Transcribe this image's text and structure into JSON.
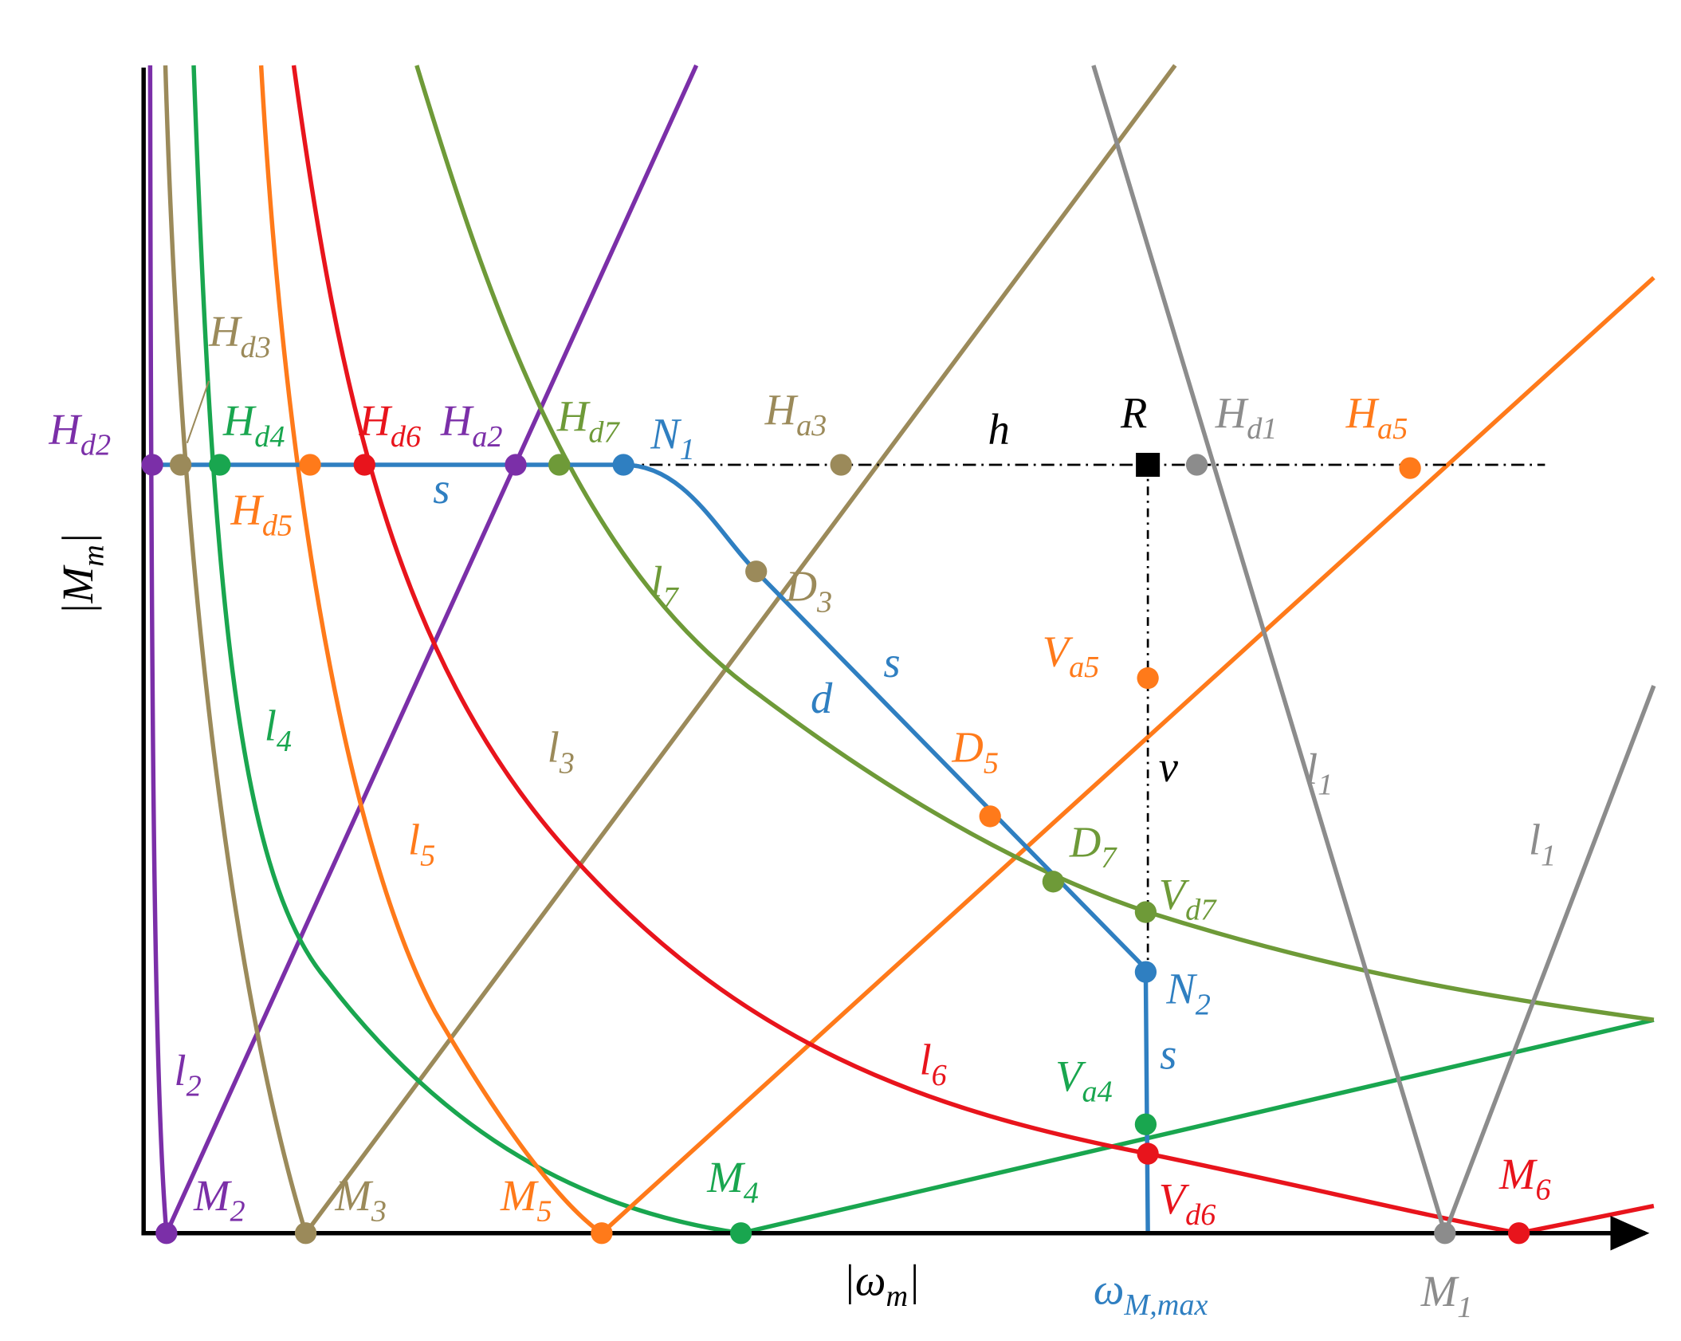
{
  "labels": {
    "Hd2": {
      "main": "H",
      "sub": "d2"
    },
    "Hd3": {
      "main": "H",
      "sub": "d3"
    },
    "Hd4": {
      "main": "H",
      "sub": "d4"
    },
    "Hd5": {
      "main": "H",
      "sub": "d5"
    },
    "Hd6": {
      "main": "H",
      "sub": "d6"
    },
    "Ha2": {
      "main": "H",
      "sub": "a2"
    },
    "Hd7": {
      "main": "H",
      "sub": "d7"
    },
    "N1": {
      "main": "N",
      "sub": "1"
    },
    "Ha3": {
      "main": "H",
      "sub": "a3"
    },
    "h": {
      "main": "h"
    },
    "R": {
      "main": "R"
    },
    "Hd1": {
      "main": "H",
      "sub": "d1"
    },
    "Ha5": {
      "main": "H",
      "sub": "a5"
    },
    "s1": {
      "main": "s"
    },
    "l7": {
      "main": "l",
      "sub": "7"
    },
    "D3": {
      "main": "D",
      "sub": "3"
    },
    "s2": {
      "main": "s"
    },
    "d": {
      "main": "d"
    },
    "Va5": {
      "main": "V",
      "sub": "a5"
    },
    "l4": {
      "main": "l",
      "sub": "4"
    },
    "l3": {
      "main": "l",
      "sub": "3"
    },
    "D5": {
      "main": "D",
      "sub": "5"
    },
    "v": {
      "main": "v"
    },
    "l1a": {
      "main": "l",
      "sub": "1"
    },
    "l5": {
      "main": "l",
      "sub": "5"
    },
    "D7": {
      "main": "D",
      "sub": "7"
    },
    "Vd7": {
      "main": "V",
      "sub": "d7"
    },
    "l1b": {
      "main": "l",
      "sub": "1"
    },
    "N2": {
      "main": "N",
      "sub": "2"
    },
    "s3": {
      "main": "s"
    },
    "l6": {
      "main": "l",
      "sub": "6"
    },
    "Va4": {
      "main": "V",
      "sub": "a4"
    },
    "l2": {
      "main": "l",
      "sub": "2"
    },
    "M6": {
      "main": "M",
      "sub": "6"
    },
    "M2": {
      "main": "M",
      "sub": "2"
    },
    "M3": {
      "main": "M",
      "sub": "3"
    },
    "M5": {
      "main": "M",
      "sub": "5"
    },
    "M4": {
      "main": "M",
      "sub": "4"
    },
    "Vd6": {
      "main": "V",
      "sub": "d6"
    },
    "x_axis": {
      "main": "|ω",
      "sub": "m",
      "post": "|"
    },
    "w_max": {
      "main": "ω",
      "sub": "M,max"
    },
    "M1": {
      "main": "M",
      "sub": "1"
    },
    "y_axis": {
      "main": "|M",
      "sub": "m",
      "post": "|"
    }
  }
}
